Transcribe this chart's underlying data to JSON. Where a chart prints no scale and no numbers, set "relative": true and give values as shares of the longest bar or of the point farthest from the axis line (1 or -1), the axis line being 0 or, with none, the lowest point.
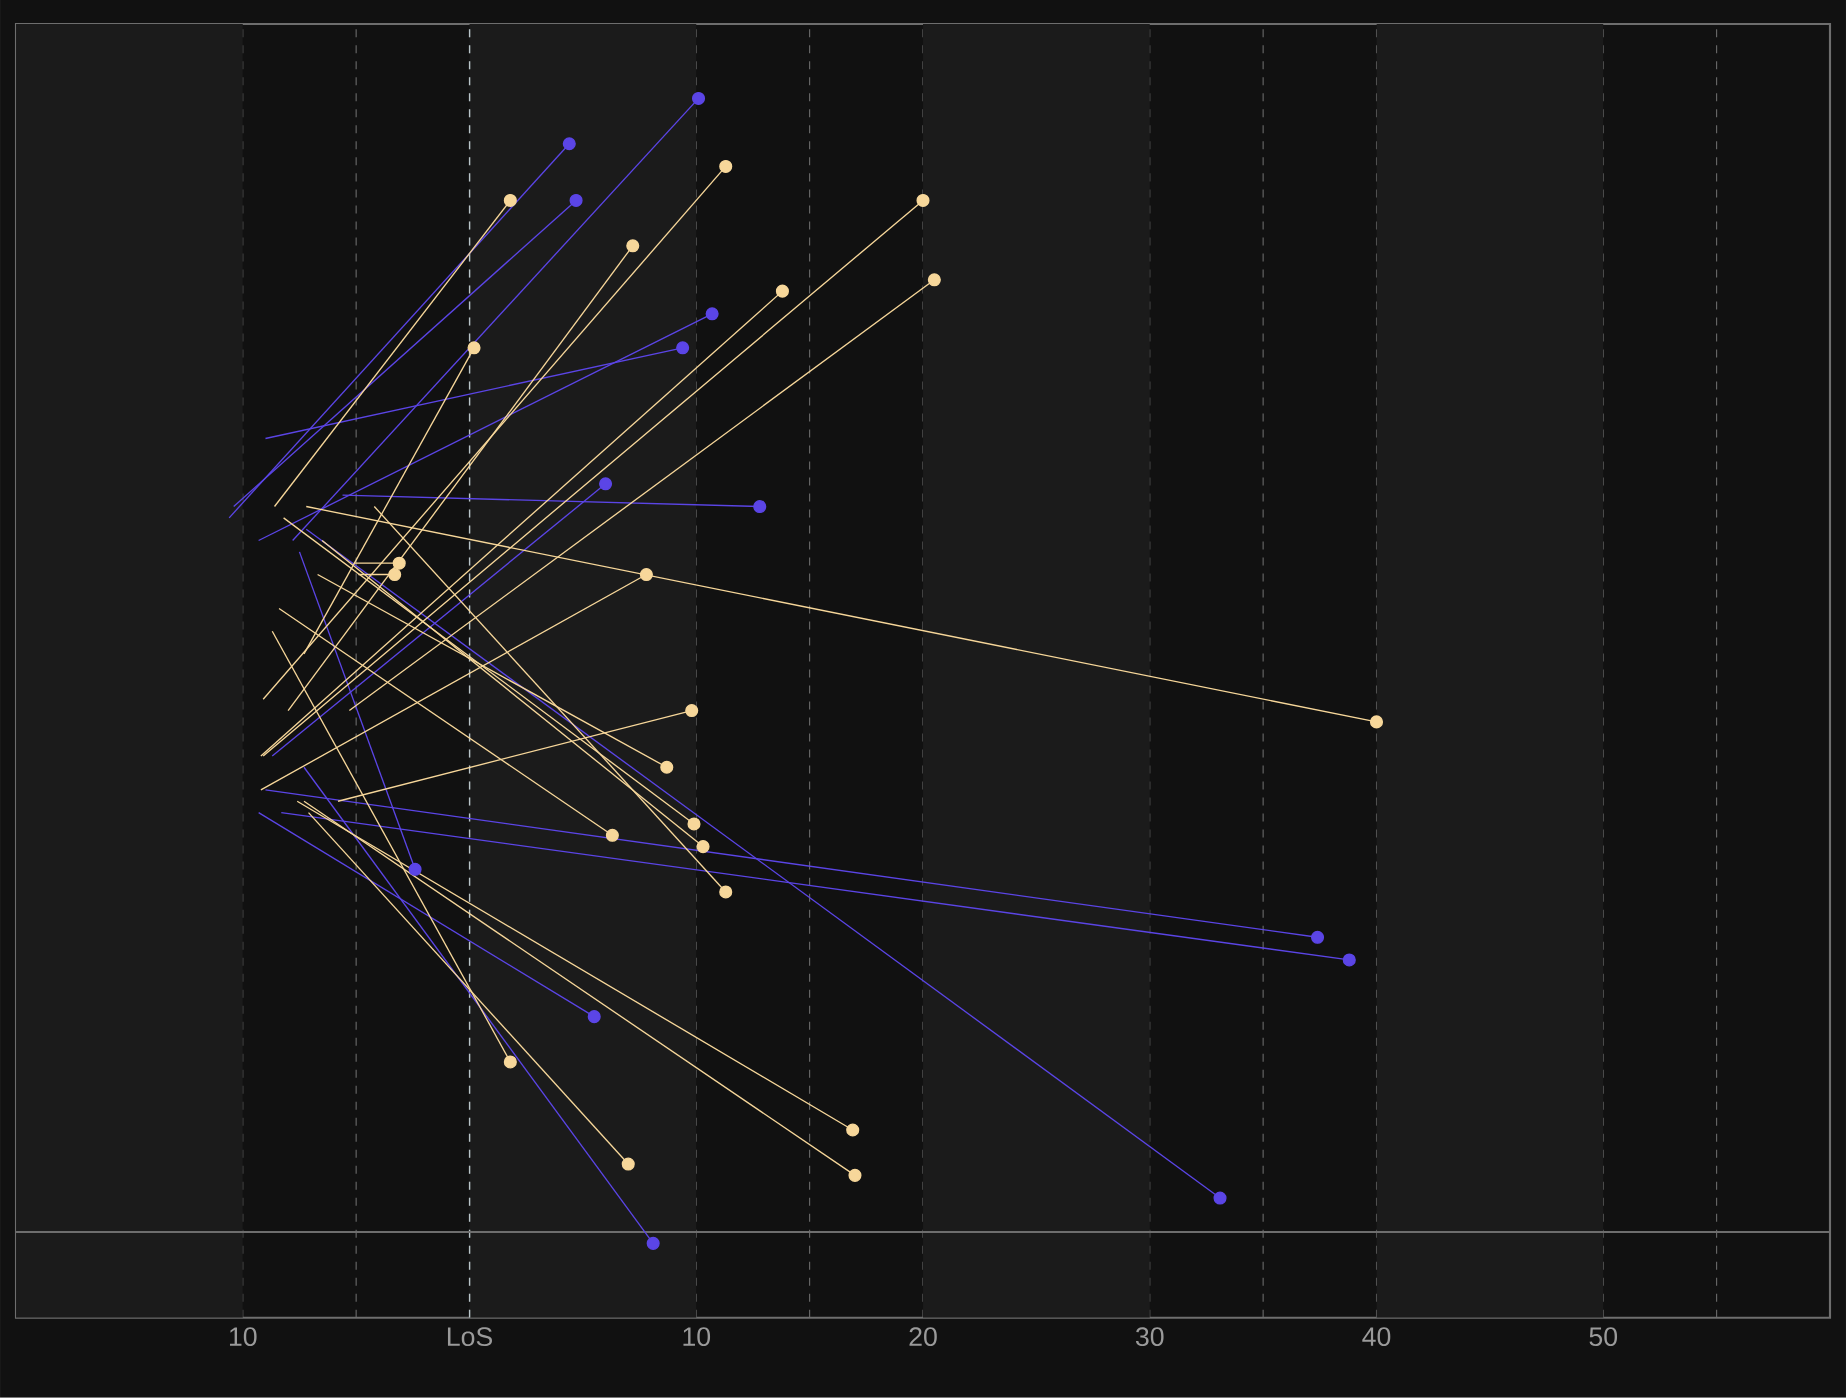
{
  "chart_data": {
    "type": "line",
    "marker": "circle",
    "line_style": "solid",
    "grid": "x",
    "relative": true,
    "xlim": [
      -20,
      60
    ],
    "xticks": [
      {
        "value": -15,
        "label": null
      },
      {
        "value": -10,
        "label": "10"
      },
      {
        "value": -5,
        "label": null
      },
      {
        "value": 0,
        "label": "LoS"
      },
      {
        "value": 5,
        "label": null
      },
      {
        "value": 10,
        "label": "10"
      },
      {
        "value": 15,
        "label": null
      },
      20,
      {
        "value": 25,
        "label": null
      },
      30,
      {
        "value": 35,
        "label": null
      },
      40,
      {
        "value": 45,
        "label": null
      },
      50,
      {
        "value": 55,
        "label": null
      }
    ],
    "ref_lines": [
      {
        "axis": "x",
        "value": 0,
        "color": "#b8c4c8",
        "line_style": "dashed"
      }
    ],
    "bands": [
      {
        "axis": "x",
        "from": -20,
        "to": -10,
        "color": "#1b1b1b"
      },
      {
        "axis": "x",
        "from": 0,
        "to": 10,
        "color": "#1b1b1b"
      },
      {
        "axis": "x",
        "from": 20,
        "to": 30,
        "color": "#1b1b1b"
      },
      {
        "axis": "x",
        "from": 40,
        "to": 50,
        "color": "#1b1b1b"
      }
    ],
    "series": [
      {
        "color": "#5b45e6",
        "x": [
          -10.6,
          4.4
        ],
        "values": [
          0.63,
          0.96
        ]
      },
      {
        "color": "#5b45e6",
        "x": [
          -10.4,
          4.7
        ],
        "values": [
          0.64,
          0.91
        ]
      },
      {
        "color": "#5b45e6",
        "x": [
          -9.3,
          10.7
        ],
        "values": [
          0.61,
          0.81
        ]
      },
      {
        "color": "#5b45e6",
        "x": [
          -7.8,
          10.1
        ],
        "values": [
          0.61,
          1
        ]
      },
      {
        "color": "#5b45e6",
        "x": [
          -9.0,
          9.4
        ],
        "values": [
          0.7,
          0.78
        ]
      },
      {
        "color": "#5b45e6",
        "x": [
          -5.6,
          12.8
        ],
        "values": [
          0.65,
          0.64
        ]
      },
      {
        "color": "#5b45e6",
        "x": [
          -8.7,
          6.0
        ],
        "values": [
          0.42,
          0.66
        ]
      },
      {
        "color": "#5b45e6",
        "x": [
          -7.5,
          -2.4
        ],
        "values": [
          0.6,
          0.32
        ]
      },
      {
        "color": "#5b45e6",
        "x": [
          -7.2,
          33.1
        ],
        "values": [
          0.62,
          0.03
        ]
      },
      {
        "color": "#5b45e6",
        "x": [
          -7.3,
          8.1
        ],
        "values": [
          0.41,
          -0.01
        ]
      },
      {
        "color": "#5b45e6",
        "x": [
          -9.0,
          37.4
        ],
        "values": [
          0.39,
          0.26
        ]
      },
      {
        "color": "#5b45e6",
        "x": [
          -8.3,
          38.8
        ],
        "values": [
          0.37,
          0.24
        ]
      },
      {
        "color": "#5b45e6",
        "x": [
          -9.3,
          5.5
        ],
        "values": [
          0.37,
          0.19
        ]
      },
      {
        "color": "#f7d79a",
        "x": [
          -8.6,
          1.8
        ],
        "values": [
          0.64,
          0.91
        ]
      },
      {
        "color": "#f7d79a",
        "x": [
          -7.2,
          40.0
        ],
        "values": [
          0.64,
          0.45
        ]
      },
      {
        "color": "#f7d79a",
        "x": [
          -4.2,
          11.3
        ],
        "values": [
          0.64,
          0.3
        ]
      },
      {
        "color": "#f7d79a",
        "x": [
          -8.2,
          9.9
        ],
        "values": [
          0.63,
          0.36
        ]
      },
      {
        "color": "#f7d79a",
        "x": [
          -6.5,
          10.3
        ],
        "values": [
          0.61,
          0.34
        ]
      },
      {
        "color": "#f7d79a",
        "x": [
          -5.1,
          -3.1
        ],
        "values": [
          0.59,
          0.59
        ]
      },
      {
        "color": "#f7d79a",
        "x": [
          -4.9,
          -3.3
        ],
        "values": [
          0.58,
          0.58
        ]
      },
      {
        "color": "#f7d79a",
        "x": [
          -6.7,
          8.7
        ],
        "values": [
          0.58,
          0.41
        ]
      },
      {
        "color": "#f7d79a",
        "x": [
          -8.4,
          6.3
        ],
        "values": [
          0.55,
          0.35
        ]
      },
      {
        "color": "#f7d79a",
        "x": [
          -7.3,
          0.2
        ],
        "values": [
          0.51,
          0.78
        ]
      },
      {
        "color": "#f7d79a",
        "x": [
          -9.1,
          11.3
        ],
        "values": [
          0.47,
          0.94
        ]
      },
      {
        "color": "#f7d79a",
        "x": [
          -8.0,
          7.2
        ],
        "values": [
          0.46,
          0.87
        ]
      },
      {
        "color": "#f7d79a",
        "x": [
          -9.2,
          13.8
        ],
        "values": [
          0.42,
          0.83
        ]
      },
      {
        "color": "#f7d79a",
        "x": [
          -5.3,
          20.5
        ],
        "values": [
          0.46,
          0.84
        ]
      },
      {
        "color": "#f7d79a",
        "x": [
          -9.1,
          20.0
        ],
        "values": [
          0.42,
          0.91
        ]
      },
      {
        "color": "#f7d79a",
        "x": [
          -5.8,
          9.8
        ],
        "values": [
          0.38,
          0.46
        ]
      },
      {
        "color": "#f7d79a",
        "x": [
          -7.6,
          16.9
        ],
        "values": [
          0.38,
          0.09
        ]
      },
      {
        "color": "#f7d79a",
        "x": [
          -7.3,
          17.0
        ],
        "values": [
          0.38,
          0.05
        ]
      },
      {
        "color": "#f7d79a",
        "x": [
          -7.1,
          7.0
        ],
        "values": [
          0.37,
          0.06
        ]
      },
      {
        "color": "#f7d79a",
        "x": [
          -8.7,
          1.8
        ],
        "values": [
          0.53,
          0.15
        ]
      },
      {
        "color": "#f7d79a",
        "x": [
          -9.2,
          7.8
        ],
        "values": [
          0.39,
          0.58
        ]
      }
    ]
  }
}
